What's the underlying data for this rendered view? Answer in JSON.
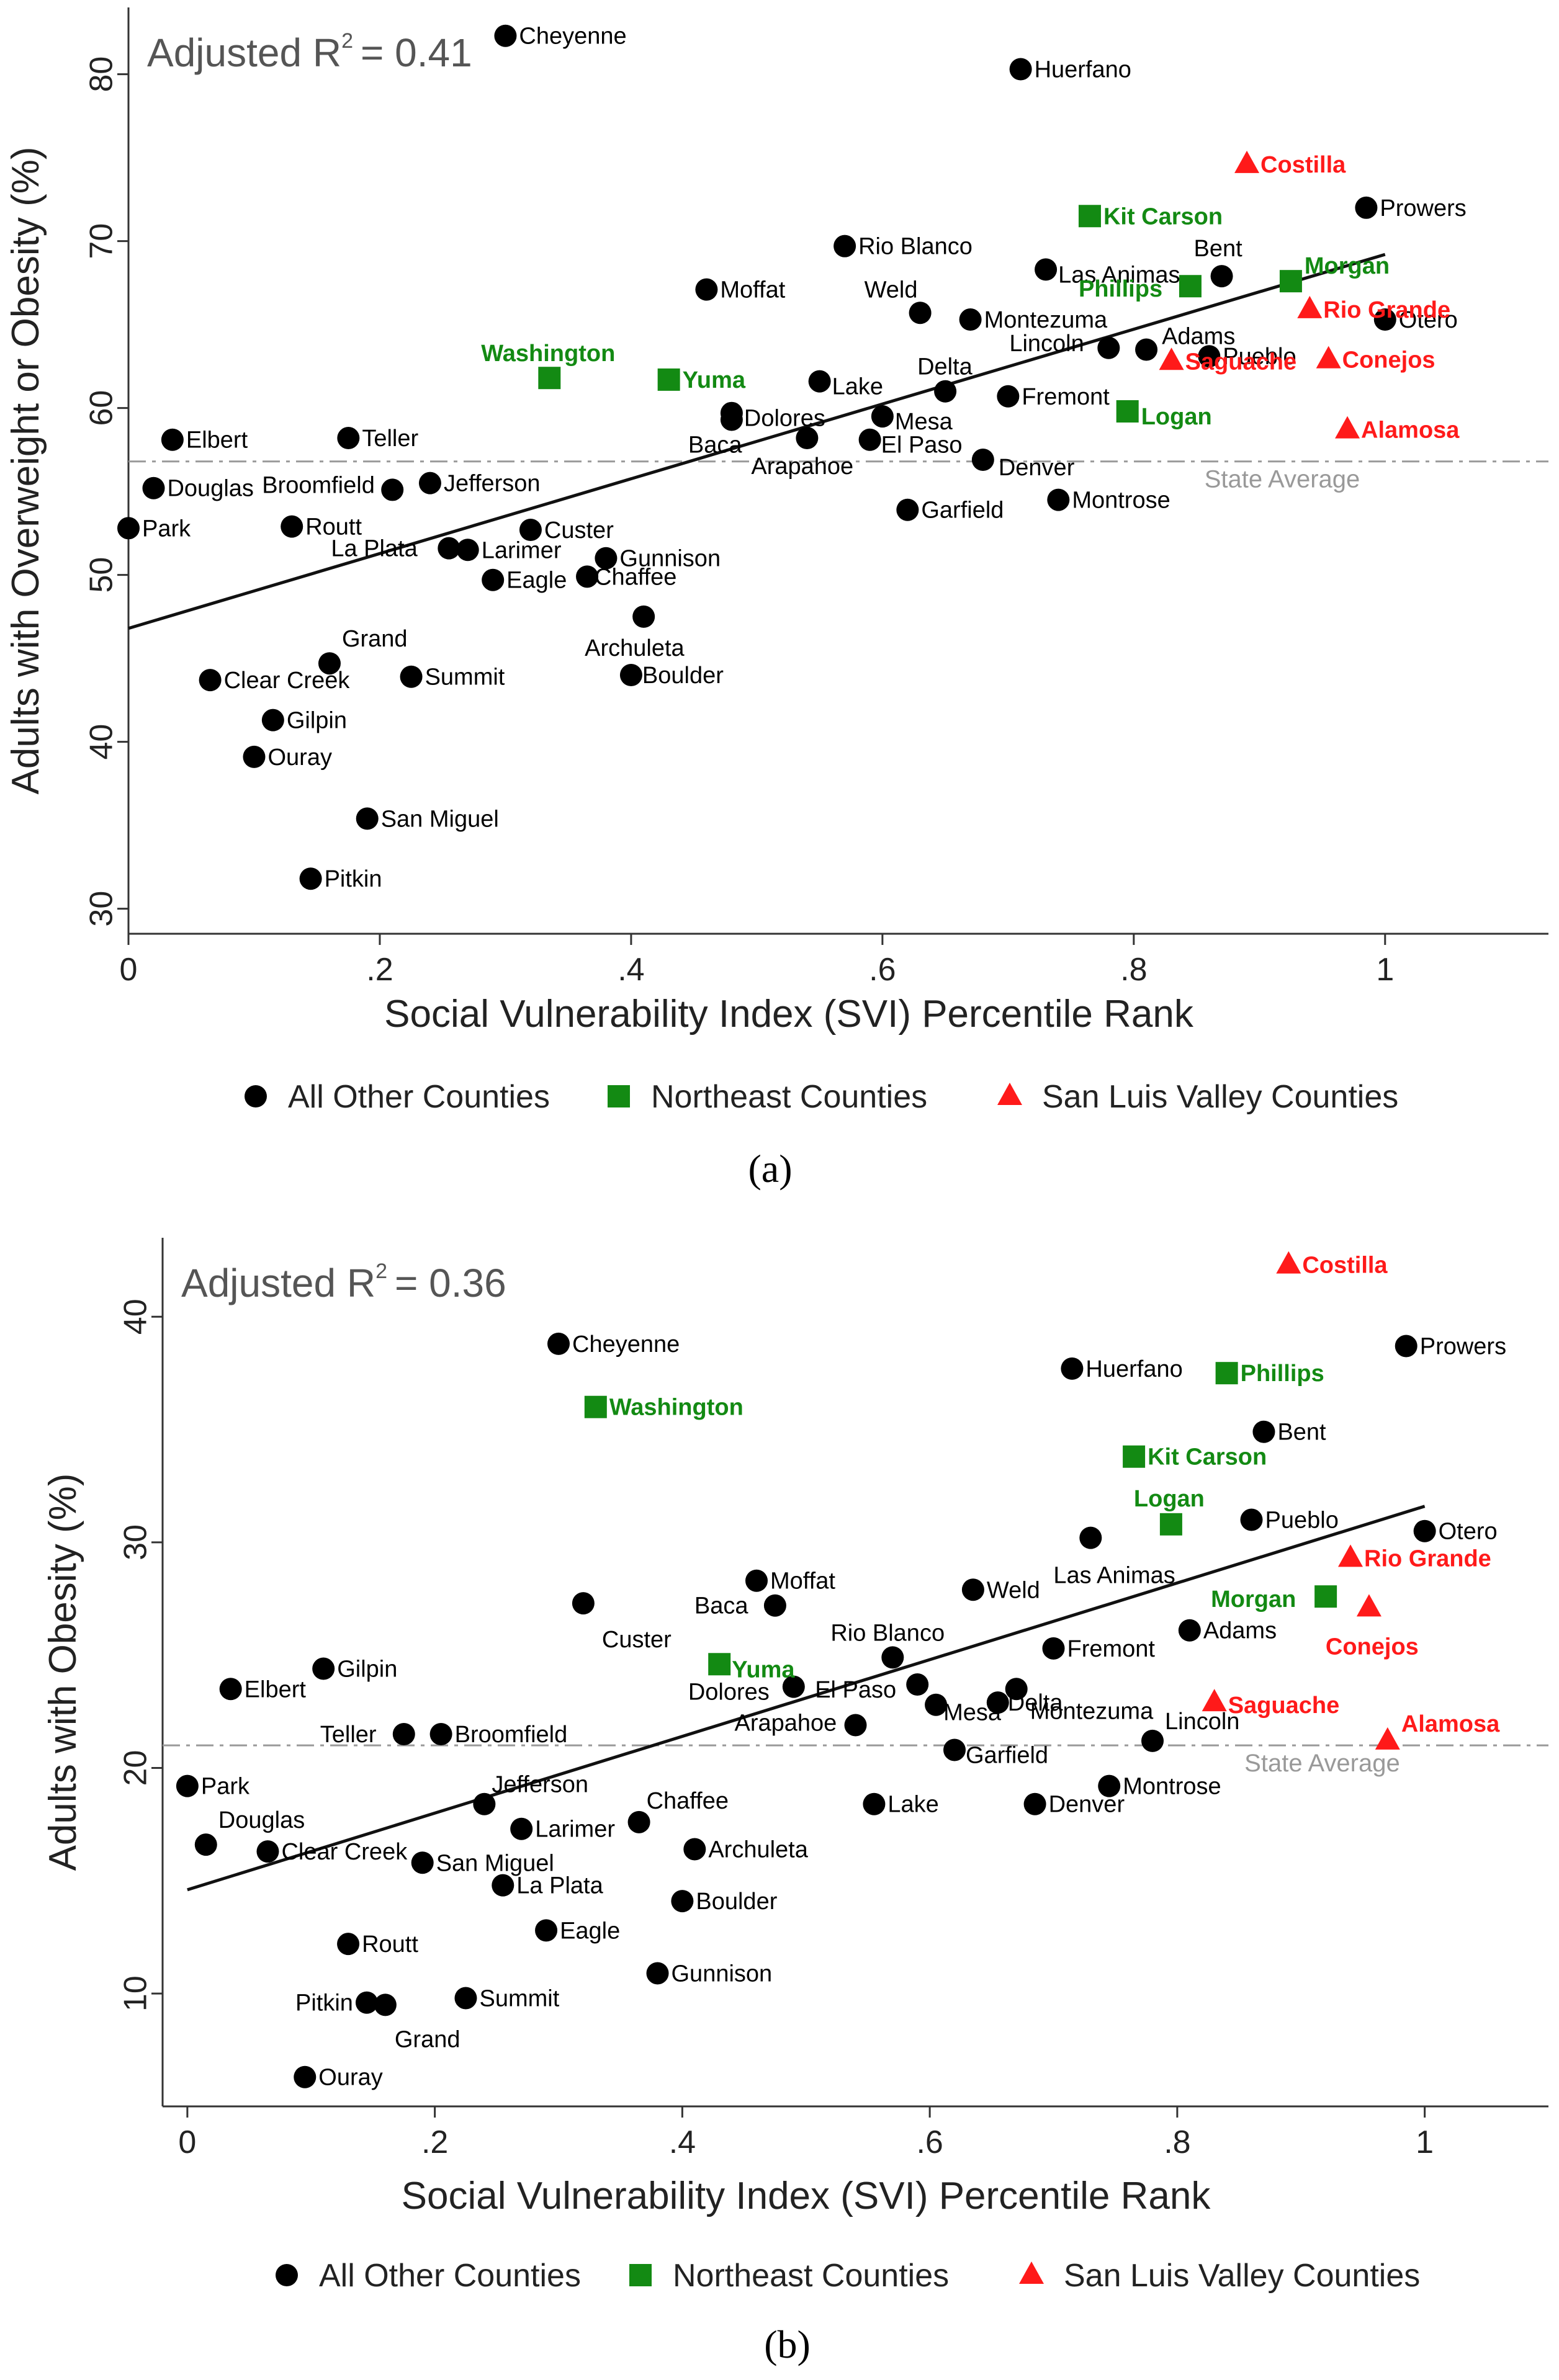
{
  "colors": {
    "other": "#000000",
    "northeast": "#138a13",
    "slv": "#ff1a1a"
  },
  "chart_data": [
    {
      "type": "scatter",
      "panel": "(a)",
      "annotation": "Adjusted R² = 0.41",
      "r2_prefix": "Adjusted R",
      "r2_exp": "2",
      "r2_value": "= 0.41",
      "xlabel": "Social Vulnerability Index (SVI) Percentile Rank",
      "ylabel": "Adults with Overweight or Obesity (%)",
      "xlim": [
        0,
        1.13
      ],
      "ylim": [
        28.5,
        84
      ],
      "xticks": [
        {
          "v": 0,
          "t": "0"
        },
        {
          "v": 0.2,
          "t": ".2"
        },
        {
          "v": 0.4,
          "t": ".4"
        },
        {
          "v": 0.6,
          "t": ".6"
        },
        {
          "v": 0.8,
          "t": ".8"
        },
        {
          "v": 1,
          "t": "1"
        }
      ],
      "yticks": [
        {
          "v": 30,
          "t": "30"
        },
        {
          "v": 40,
          "t": "40"
        },
        {
          "v": 50,
          "t": "50"
        },
        {
          "v": 60,
          "t": "60"
        },
        {
          "v": 70,
          "t": "70"
        },
        {
          "v": 80,
          "t": "80"
        }
      ],
      "state_average": 56.8,
      "state_average_label": "State Average",
      "fit_line": [
        [
          0,
          46.8
        ],
        [
          1,
          69.2
        ]
      ],
      "legend": [
        "All Other Counties",
        "Northeast Counties",
        "San Luis Valley Counties"
      ],
      "series": [
        {
          "name": "All Other Counties",
          "points": [
            {
              "x": 0.3,
              "y": 82.3,
              "label": "Cheyenne"
            },
            {
              "x": 0.71,
              "y": 80.3,
              "label": "Huerfano"
            },
            {
              "x": 0.985,
              "y": 72.0,
              "label": "Prowers"
            },
            {
              "x": 0.57,
              "y": 69.7,
              "label": "Rio Blanco"
            },
            {
              "x": 0.73,
              "y": 68.3,
              "label": "Las Animas"
            },
            {
              "x": 0.87,
              "y": 67.9,
              "label": "Bent"
            },
            {
              "x": 0.46,
              "y": 67.1,
              "label": "Moffat"
            },
            {
              "x": 0.63,
              "y": 65.7,
              "label": "Weld"
            },
            {
              "x": 0.67,
              "y": 65.3,
              "label": "Montezuma"
            },
            {
              "x": 1.0,
              "y": 65.3,
              "label": "Otero"
            },
            {
              "x": 0.81,
              "y": 63.5,
              "label": "Adams"
            },
            {
              "x": 0.78,
              "y": 63.6,
              "label": "Lincoln"
            },
            {
              "x": 0.86,
              "y": 63.1,
              "label": "Pueblo"
            },
            {
              "x": 0.55,
              "y": 61.6,
              "label": "Lake"
            },
            {
              "x": 0.65,
              "y": 61.0,
              "label": "Delta"
            },
            {
              "x": 0.7,
              "y": 60.7,
              "label": "Fremont"
            },
            {
              "x": 0.48,
              "y": 59.7,
              "label": "Dolores"
            },
            {
              "x": 0.6,
              "y": 59.5,
              "label": "Mesa"
            },
            {
              "x": 0.48,
              "y": 59.3,
              "label": "Baca"
            },
            {
              "x": 0.54,
              "y": 58.2,
              "label": "Arapahoe"
            },
            {
              "x": 0.59,
              "y": 58.1,
              "label": "El Paso"
            },
            {
              "x": 0.68,
              "y": 56.9,
              "label": "Denver"
            },
            {
              "x": 0.035,
              "y": 58.1,
              "label": "Elbert"
            },
            {
              "x": 0.175,
              "y": 58.2,
              "label": "Teller"
            },
            {
              "x": 0.02,
              "y": 55.2,
              "label": "Douglas"
            },
            {
              "x": 0.21,
              "y": 55.1,
              "label": "Broomfield"
            },
            {
              "x": 0.24,
              "y": 55.5,
              "label": "Jefferson"
            },
            {
              "x": 0.74,
              "y": 54.5,
              "label": "Montrose"
            },
            {
              "x": 0.62,
              "y": 53.9,
              "label": "Garfield"
            },
            {
              "x": 0.0,
              "y": 52.8,
              "label": "Park"
            },
            {
              "x": 0.13,
              "y": 52.9,
              "label": "Routt"
            },
            {
              "x": 0.32,
              "y": 52.7,
              "label": "Custer"
            },
            {
              "x": 0.255,
              "y": 51.6,
              "label": "La Plata"
            },
            {
              "x": 0.27,
              "y": 51.5,
              "label": "Larimer"
            },
            {
              "x": 0.38,
              "y": 51.0,
              "label": "Gunnison"
            },
            {
              "x": 0.365,
              "y": 49.9,
              "label": "Chaffee"
            },
            {
              "x": 0.29,
              "y": 49.7,
              "label": "Eagle"
            },
            {
              "x": 0.41,
              "y": 47.5,
              "label": "Archuleta"
            },
            {
              "x": 0.16,
              "y": 44.7,
              "label": "Grand"
            },
            {
              "x": 0.065,
              "y": 43.7,
              "label": "Clear Creek"
            },
            {
              "x": 0.225,
              "y": 43.9,
              "label": "Summit"
            },
            {
              "x": 0.4,
              "y": 44.0,
              "label": "Boulder"
            },
            {
              "x": 0.115,
              "y": 41.3,
              "label": "Gilpin"
            },
            {
              "x": 0.1,
              "y": 39.1,
              "label": "Ouray"
            },
            {
              "x": 0.19,
              "y": 35.4,
              "label": "San Miguel"
            },
            {
              "x": 0.145,
              "y": 31.8,
              "label": "Pitkin"
            }
          ]
        },
        {
          "name": "Northeast Counties",
          "points": [
            {
              "x": 0.765,
              "y": 71.5,
              "label": "Kit Carson"
            },
            {
              "x": 0.845,
              "y": 67.3,
              "label": "Phillips"
            },
            {
              "x": 0.925,
              "y": 67.6,
              "label": "Morgan"
            },
            {
              "x": 0.335,
              "y": 61.8,
              "label": "Washington"
            },
            {
              "x": 0.43,
              "y": 61.7,
              "label": "Yuma"
            },
            {
              "x": 0.795,
              "y": 59.8,
              "label": "Logan"
            }
          ]
        },
        {
          "name": "San Luis Valley Counties",
          "points": [
            {
              "x": 0.89,
              "y": 74.6,
              "label": "Costilla"
            },
            {
              "x": 0.94,
              "y": 65.9,
              "label": "Rio Grande"
            },
            {
              "x": 0.83,
              "y": 62.8,
              "label": "Saguache"
            },
            {
              "x": 0.955,
              "y": 62.9,
              "label": "Conejos"
            },
            {
              "x": 0.97,
              "y": 58.7,
              "label": "Alamosa"
            }
          ]
        }
      ]
    },
    {
      "type": "scatter",
      "panel": "(b)",
      "annotation": "Adjusted R² = 0.36",
      "r2_prefix": "Adjusted R",
      "r2_exp": "2",
      "r2_value": "= 0.36",
      "xlabel": "Social Vulnerability Index (SVI) Percentile Rank",
      "ylabel": "Adults with Obesity (%)",
      "xlim": [
        -0.02,
        1.1
      ],
      "ylim": [
        5,
        43.5
      ],
      "xticks": [
        {
          "v": 0,
          "t": "0"
        },
        {
          "v": 0.2,
          "t": ".2"
        },
        {
          "v": 0.4,
          "t": ".4"
        },
        {
          "v": 0.6,
          "t": ".6"
        },
        {
          "v": 0.8,
          "t": ".8"
        },
        {
          "v": 1,
          "t": "1"
        }
      ],
      "yticks": [
        {
          "v": 10,
          "t": "10"
        },
        {
          "v": 20,
          "t": "20"
        },
        {
          "v": 30,
          "t": "30"
        },
        {
          "v": 40,
          "t": "40"
        }
      ],
      "state_average": 21.0,
      "state_average_label": "State Average",
      "fit_line": [
        [
          0,
          14.6
        ],
        [
          1,
          31.6
        ]
      ],
      "legend": [
        "All Other Counties",
        "Northeast Counties",
        "San Luis Valley Counties"
      ],
      "series": [
        {
          "name": "All Other Counties",
          "points": [
            {
              "x": 0.3,
              "y": 38.8,
              "label": "Cheyenne"
            },
            {
              "x": 0.715,
              "y": 37.7,
              "label": "Huerfano"
            },
            {
              "x": 0.985,
              "y": 38.7,
              "label": "Prowers"
            },
            {
              "x": 0.87,
              "y": 34.9,
              "label": "Bent"
            },
            {
              "x": 0.86,
              "y": 31.0,
              "label": "Pueblo"
            },
            {
              "x": 1.0,
              "y": 30.5,
              "label": "Otero"
            },
            {
              "x": 0.73,
              "y": 30.2,
              "label": "Las Animas"
            },
            {
              "x": 0.46,
              "y": 28.3,
              "label": "Moffat"
            },
            {
              "x": 0.635,
              "y": 27.9,
              "label": "Weld"
            },
            {
              "x": 0.475,
              "y": 27.2,
              "label": "Baca"
            },
            {
              "x": 0.32,
              "y": 27.3,
              "label": "Custer"
            },
            {
              "x": 0.81,
              "y": 26.1,
              "label": "Adams"
            },
            {
              "x": 0.7,
              "y": 25.3,
              "label": "Fremont"
            },
            {
              "x": 0.57,
              "y": 24.9,
              "label": "Rio Blanco"
            },
            {
              "x": 0.11,
              "y": 24.4,
              "label": "Gilpin"
            },
            {
              "x": 0.035,
              "y": 23.5,
              "label": "Elbert"
            },
            {
              "x": 0.49,
              "y": 23.6,
              "label": "Dolores"
            },
            {
              "x": 0.59,
              "y": 23.7,
              "label": "El Paso"
            },
            {
              "x": 0.67,
              "y": 23.5,
              "label": "Montezuma"
            },
            {
              "x": 0.605,
              "y": 22.8,
              "label": "Mesa"
            },
            {
              "x": 0.655,
              "y": 22.9,
              "label": "Delta"
            },
            {
              "x": 0.54,
              "y": 21.9,
              "label": "Arapahoe"
            },
            {
              "x": 0.175,
              "y": 21.5,
              "label": "Teller"
            },
            {
              "x": 0.205,
              "y": 21.5,
              "label": "Broomfield"
            },
            {
              "x": 0.78,
              "y": 21.2,
              "label": "Lincoln"
            },
            {
              "x": 0.62,
              "y": 20.8,
              "label": "Garfield"
            },
            {
              "x": 0.0,
              "y": 19.2,
              "label": "Park"
            },
            {
              "x": 0.745,
              "y": 19.2,
              "label": "Montrose"
            },
            {
              "x": 0.24,
              "y": 18.4,
              "label": "Jefferson"
            },
            {
              "x": 0.555,
              "y": 18.4,
              "label": "Lake"
            },
            {
              "x": 0.685,
              "y": 18.4,
              "label": "Denver"
            },
            {
              "x": 0.27,
              "y": 17.3,
              "label": "Larimer"
            },
            {
              "x": 0.365,
              "y": 17.6,
              "label": "Chaffee"
            },
            {
              "x": 0.015,
              "y": 16.6,
              "label": "Douglas"
            },
            {
              "x": 0.065,
              "y": 16.3,
              "label": "Clear Creek"
            },
            {
              "x": 0.19,
              "y": 15.8,
              "label": "San Miguel"
            },
            {
              "x": 0.41,
              "y": 16.4,
              "label": "Archuleta"
            },
            {
              "x": 0.255,
              "y": 14.8,
              "label": "La Plata"
            },
            {
              "x": 0.4,
              "y": 14.1,
              "label": "Boulder"
            },
            {
              "x": 0.29,
              "y": 12.8,
              "label": "Eagle"
            },
            {
              "x": 0.13,
              "y": 12.2,
              "label": "Routt"
            },
            {
              "x": 0.38,
              "y": 10.9,
              "label": "Gunnison"
            },
            {
              "x": 0.225,
              "y": 9.8,
              "label": "Summit"
            },
            {
              "x": 0.145,
              "y": 9.6,
              "label": "Pitkin"
            },
            {
              "x": 0.16,
              "y": 9.5,
              "label": "Grand"
            },
            {
              "x": 0.095,
              "y": 6.3,
              "label": "Ouray"
            }
          ]
        },
        {
          "name": "Northeast Counties",
          "points": [
            {
              "x": 0.84,
              "y": 37.5,
              "label": "Phillips"
            },
            {
              "x": 0.33,
              "y": 36.0,
              "label": "Washington"
            },
            {
              "x": 0.765,
              "y": 33.8,
              "label": "Kit Carson"
            },
            {
              "x": 0.795,
              "y": 30.8,
              "label": "Logan"
            },
            {
              "x": 0.92,
              "y": 27.6,
              "label": "Morgan"
            },
            {
              "x": 0.43,
              "y": 24.6,
              "label": "Yuma"
            }
          ]
        },
        {
          "name": "San Luis Valley Counties",
          "points": [
            {
              "x": 0.89,
              "y": 42.3,
              "label": "Costilla"
            },
            {
              "x": 0.94,
              "y": 29.3,
              "label": "Rio Grande"
            },
            {
              "x": 0.955,
              "y": 27.1,
              "label": "Conejos"
            },
            {
              "x": 0.83,
              "y": 22.9,
              "label": "Saguache"
            },
            {
              "x": 0.97,
              "y": 21.2,
              "label": "Alamosa"
            }
          ]
        }
      ]
    }
  ]
}
